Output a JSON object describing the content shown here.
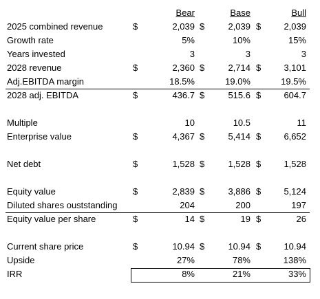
{
  "header": {
    "columns": [
      "Bear",
      "Base",
      "Bull"
    ]
  },
  "sections": [
    [
      {
        "label": "2025 combined revenue",
        "cells": [
          {
            "unit": "$",
            "text": "2,039"
          },
          {
            "unit": "$",
            "text": "2,039"
          },
          {
            "unit": "$",
            "text": "2,039"
          }
        ]
      },
      {
        "label": "Growth rate",
        "cells": [
          {
            "text": "5%"
          },
          {
            "text": "10%"
          },
          {
            "text": "15%"
          }
        ]
      },
      {
        "label": "Years invested",
        "cells": [
          {
            "text": "3"
          },
          {
            "text": "3"
          },
          {
            "text": "3"
          }
        ]
      },
      {
        "label": "2028 revenue",
        "cells": [
          {
            "unit": "$",
            "text": "2,360"
          },
          {
            "unit": "$",
            "text": "2,714"
          },
          {
            "unit": "$",
            "text": "3,101"
          }
        ]
      },
      {
        "label": "Adj.EBITDA margin",
        "cells": [
          {
            "text": "18.5%"
          },
          {
            "text": "19.0%"
          },
          {
            "text": "19.5%"
          }
        ]
      },
      {
        "label": "2028 adj. EBITDA",
        "cells": [
          {
            "unit": "$",
            "text": "436.7"
          },
          {
            "unit": "$",
            "text": "515.6"
          },
          {
            "unit": "$",
            "text": "604.7"
          }
        ]
      }
    ],
    [
      {
        "label": "Multiple",
        "cells": [
          {
            "text": "10"
          },
          {
            "text": "10.5"
          },
          {
            "text": "11"
          }
        ]
      },
      {
        "label": "Enterprise value",
        "cells": [
          {
            "unit": "$",
            "text": "4,367"
          },
          {
            "unit": "$",
            "text": "5,414"
          },
          {
            "unit": "$",
            "text": "6,652"
          }
        ]
      }
    ],
    [
      {
        "label": "Net debt",
        "cells": [
          {
            "unit": "$",
            "text": "1,528"
          },
          {
            "unit": "$",
            "text": "1,528"
          },
          {
            "unit": "$",
            "text": "1,528"
          }
        ]
      }
    ],
    [
      {
        "label": "Equity value",
        "cells": [
          {
            "unit": "$",
            "text": "2,839"
          },
          {
            "unit": "$",
            "text": "3,886"
          },
          {
            "unit": "$",
            "text": "5,124"
          }
        ]
      },
      {
        "label": "Diluted shares ouststanding",
        "cells": [
          {
            "text": "204"
          },
          {
            "text": "200"
          },
          {
            "text": "197"
          }
        ]
      },
      {
        "label": "Equity value per share",
        "cells": [
          {
            "unit": "$",
            "text": "14"
          },
          {
            "unit": "$",
            "text": "19"
          },
          {
            "unit": "$",
            "text": "26"
          }
        ]
      }
    ],
    [
      {
        "label": "Current share price",
        "cells": [
          {
            "unit": "$",
            "text": "10.94"
          },
          {
            "unit": "$",
            "text": "10.94"
          },
          {
            "unit": "$",
            "text": "10.94"
          }
        ]
      },
      {
        "label": "Upside",
        "cells": [
          {
            "text": "27%"
          },
          {
            "text": "78%"
          },
          {
            "text": "138%"
          }
        ]
      },
      {
        "label": "IRR",
        "cells": [
          {
            "text": "8%"
          },
          {
            "text": "21%"
          },
          {
            "text": "33%"
          }
        ]
      }
    ]
  ]
}
